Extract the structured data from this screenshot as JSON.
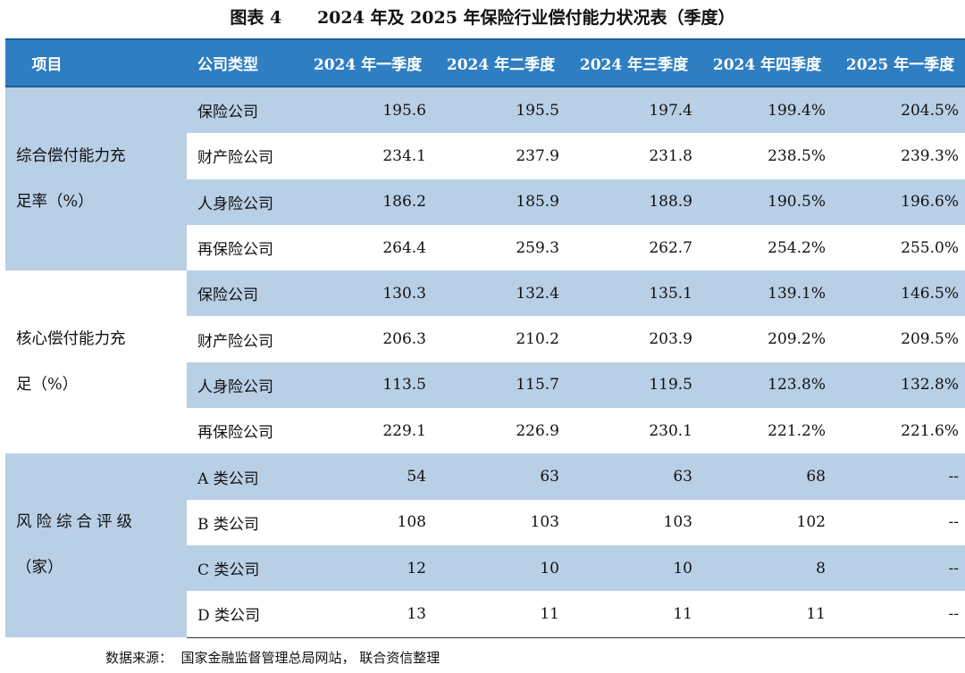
{
  "title": "图表 4      2024 年及 2025 年保险行业偿付能力状况表（季度）",
  "headers": [
    "项目",
    "公司类型",
    "2024 年一季度",
    "2024 年二季度",
    "2024 年三季度",
    "2024 年四季度",
    "2025 年一季度"
  ],
  "groups": [
    {
      "label_line1": "综合偿付能力充",
      "label_line2": "足率（%）",
      "rows": [
        {
          "type": "保险公司",
          "values": [
            "195.6",
            "195.5",
            "197.4",
            "199.4%",
            "204.5%"
          ]
        },
        {
          "type": "财产险公司",
          "values": [
            "234.1",
            "237.9",
            "231.8",
            "238.5%",
            "239.3%"
          ]
        },
        {
          "type": "人身险公司",
          "values": [
            "186.2",
            "185.9",
            "188.9",
            "190.5%",
            "196.6%"
          ]
        },
        {
          "type": "再保险公司",
          "values": [
            "264.4",
            "259.3",
            "262.7",
            "254.2%",
            "255.0%"
          ]
        }
      ]
    },
    {
      "label_line1": "核心偿付能力充",
      "label_line2": "足（%）",
      "rows": [
        {
          "type": "保险公司",
          "values": [
            "130.3",
            "132.4",
            "135.1",
            "139.1%",
            "146.5%"
          ]
        },
        {
          "type": "财产险公司",
          "values": [
            "206.3",
            "210.2",
            "203.9",
            "209.2%",
            "209.5%"
          ]
        },
        {
          "type": "人身险公司",
          "values": [
            "113.5",
            "115.7",
            "119.5",
            "123.8%",
            "132.8%"
          ]
        },
        {
          "type": "再保险公司",
          "values": [
            "229.1",
            "226.9",
            "230.1",
            "221.2%",
            "221.6%"
          ]
        }
      ]
    },
    {
      "label_line1": "风险综合评级",
      "label_line2": "（家）",
      "rows": [
        {
          "type": "A 类公司",
          "values": [
            "54",
            "63",
            "63",
            "68",
            "--"
          ]
        },
        {
          "type": "B 类公司",
          "values": [
            "108",
            "103",
            "103",
            "102",
            "--"
          ]
        },
        {
          "type": "C 类公司",
          "values": [
            "12",
            "10",
            "10",
            "8",
            "--"
          ]
        },
        {
          "type": "D 类公司",
          "values": [
            "13",
            "11",
            "11",
            "11",
            "--"
          ]
        }
      ]
    }
  ],
  "source": "数据来源：  国家金融监督管理总局网站， 联合资信整理",
  "colors": {
    "header_bg": "#2f7ec2",
    "header_text": "#ffffff",
    "shade": "#b8cfe6"
  }
}
